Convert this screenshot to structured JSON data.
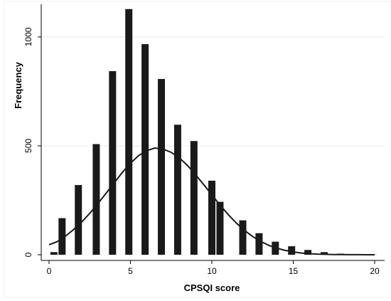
{
  "chart_data": {
    "type": "bar",
    "title": "",
    "xlabel": "CPSQI score",
    "ylabel": "Frequency",
    "xlim": [
      0,
      20
    ],
    "ylim": [
      0,
      1150
    ],
    "xticks": [
      "0",
      "5",
      "10",
      "15",
      "20"
    ],
    "yticks": [
      "0",
      "500",
      "1000"
    ],
    "grid": true,
    "series": [
      {
        "type": "bar",
        "x": [
          0.3,
          0.8,
          1.8,
          2.9,
          3.9,
          4.9,
          5.9,
          6.9,
          7.9,
          8.9,
          10.0,
          10.5,
          11.9,
          12.9,
          13.9,
          14.9,
          15.9,
          16.9,
          17.9,
          18.9,
          19.9
        ],
        "values": [
          12,
          168,
          320,
          508,
          843,
          1128,
          967,
          807,
          597,
          522,
          340,
          243,
          158,
          99,
          60,
          39,
          22,
          12,
          5,
          3,
          1
        ]
      },
      {
        "type": "line",
        "x": [
          0,
          0.5,
          1,
          1.5,
          2,
          2.5,
          3,
          3.5,
          4,
          4.5,
          5,
          5.5,
          6,
          6.5,
          7,
          7.5,
          8,
          8.5,
          9,
          9.5,
          10,
          10.5,
          11,
          11.5,
          12,
          12.5,
          13,
          13.5,
          14,
          14.5,
          15,
          15.5,
          16,
          16.5,
          17,
          17.5,
          18,
          18.5,
          19,
          19.5,
          20
        ],
        "values": [
          46,
          60,
          85,
          115,
          150,
          190,
          235,
          282,
          330,
          378,
          420,
          455,
          478,
          490,
          485,
          470,
          445,
          410,
          368,
          322,
          275,
          228,
          185,
          146,
          112,
          84,
          61,
          43,
          30,
          20,
          13,
          8,
          5,
          3,
          2,
          1,
          0.6,
          0.4,
          0.2,
          0.1,
          0
        ]
      }
    ],
    "colors": {
      "bar": "#1a1a1a",
      "line": "#1a1a1a",
      "grid": "#e8e8e8",
      "axis": "#000000",
      "background": "#ffffff"
    }
  }
}
